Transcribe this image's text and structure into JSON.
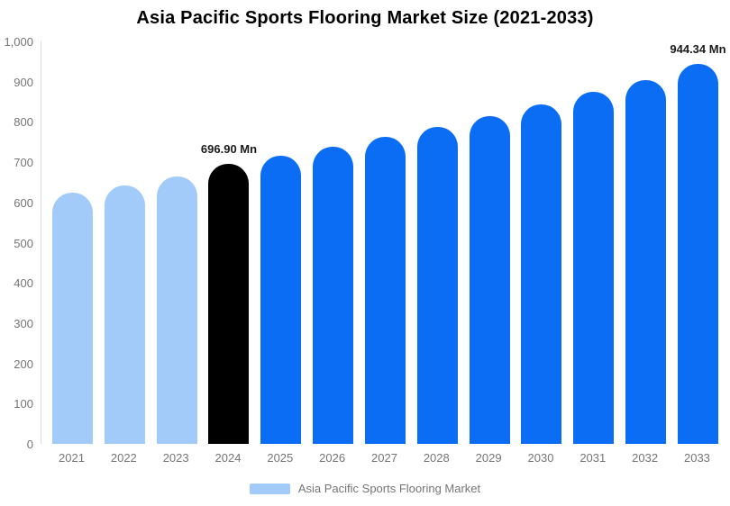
{
  "chart_data": {
    "type": "bar",
    "title": "Asia Pacific Sports Flooring Market Size (2021-2033)",
    "unit": "Mn",
    "categories": [
      "2021",
      "2022",
      "2023",
      "2024",
      "2025",
      "2026",
      "2027",
      "2028",
      "2029",
      "2030",
      "2031",
      "2032",
      "2033"
    ],
    "values": [
      624,
      643,
      665,
      696.9,
      715,
      738,
      762,
      787,
      814,
      843,
      874,
      904,
      944.34
    ],
    "annotations": {
      "2024": "696.90 Mn",
      "2033": "944.34 Mn"
    },
    "bar_colors": [
      "#A2CBFA",
      "#A2CBFA",
      "#A2CBFA",
      "#000000",
      "#0B6CF4",
      "#0B6CF4",
      "#0B6CF4",
      "#0B6CF4",
      "#0B6CF4",
      "#0B6CF4",
      "#0B6CF4",
      "#0B6CF4",
      "#0B6CF4"
    ],
    "colors": {
      "historical_bar": "#A2CBFA",
      "base_year_bar": "#000000",
      "forecast_bar": "#0B6CF4",
      "axis_text": "#757575",
      "annotation_text": "#1a1a1a",
      "axis_line": "#D9D9D9"
    },
    "ylim": [
      0,
      1000
    ],
    "y_tick_values": [
      0,
      100,
      200,
      300,
      400,
      500,
      600,
      700,
      800,
      900,
      1000
    ],
    "y_tick_labels": [
      "0",
      "100",
      "200",
      "300",
      "400",
      "500",
      "600",
      "700",
      "800",
      "900",
      "1,000"
    ],
    "grid": false,
    "legend_position": "bottom",
    "legend": {
      "label": "Asia Pacific Sports Flooring Market",
      "swatch_color": "#A2CBFA"
    }
  }
}
